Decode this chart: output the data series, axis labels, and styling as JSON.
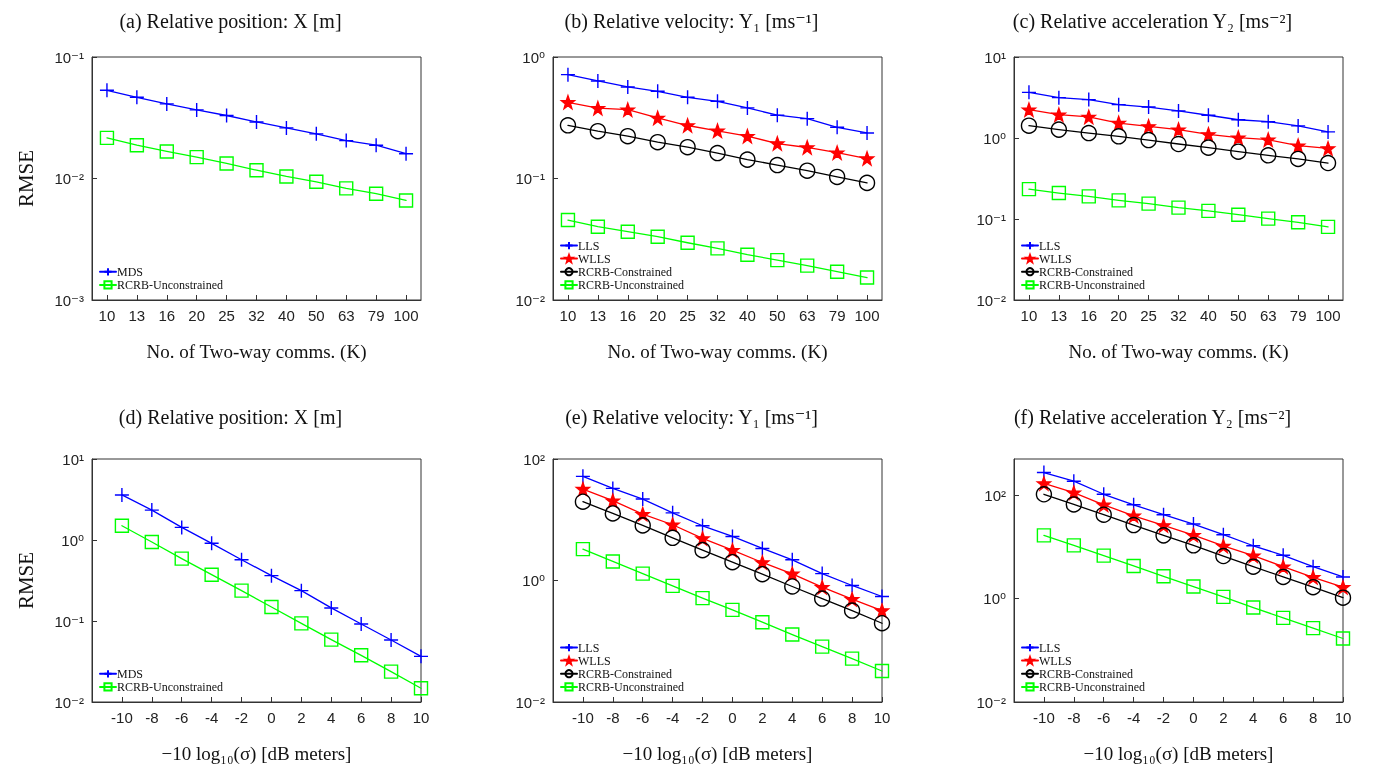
{
  "chart_data": [
    {
      "type": "line",
      "title": "(a) Relative position: X [m]",
      "xlabel": "No. of Two-way comms. (K)",
      "ylabel": "RMSE",
      "categories": [
        "10",
        "13",
        "16",
        "20",
        "25",
        "32",
        "40",
        "50",
        "63",
        "79",
        "100"
      ],
      "log": "y",
      "ylim": [
        0.001,
        0.1
      ],
      "yticks": [
        {
          "value": 0.001,
          "label": "10⁻³"
        },
        {
          "value": 0.01,
          "label": "10⁻²"
        },
        {
          "value": 0.1,
          "label": "10⁻¹"
        }
      ],
      "legend": "bottom left",
      "series": [
        {
          "name": "MDS",
          "color": "#0000ff",
          "marker": "cross",
          "values": [
            0.0532,
            0.0466,
            0.0411,
            0.0367,
            0.033,
            0.0292,
            0.0261,
            0.0233,
            0.0205,
            0.0188,
            0.016
          ]
        },
        {
          "name": "RCRB-Unconstrained",
          "color": "#00ff00",
          "marker": "square",
          "values": [
            0.0216,
            0.0188,
            0.0167,
            0.015,
            0.0133,
            0.0117,
            0.0104,
            0.0094,
            0.0083,
            0.0075,
            0.0066
          ]
        }
      ]
    },
    {
      "type": "line",
      "title": "(b) Relative velocity: Y₁ [ms⁻¹]",
      "xlabel": "No. of Two-way comms. (K)",
      "categories": [
        "10",
        "13",
        "16",
        "20",
        "25",
        "32",
        "40",
        "50",
        "63",
        "79",
        "100"
      ],
      "log": "y",
      "ylim": [
        0.01,
        1
      ],
      "yticks": [
        {
          "value": 0.01,
          "label": "10⁻²"
        },
        {
          "value": 0.1,
          "label": "10⁻¹"
        },
        {
          "value": 1,
          "label": "10⁰"
        }
      ],
      "legend": "bottom left",
      "series": [
        {
          "name": "LLS",
          "color": "#0000ff",
          "marker": "cross",
          "values": [
            0.716,
            0.635,
            0.567,
            0.522,
            0.466,
            0.432,
            0.381,
            0.332,
            0.311,
            0.264,
            0.237
          ]
        },
        {
          "name": "WLLS",
          "color": "#ff0000",
          "marker": "star",
          "values": [
            0.424,
            0.379,
            0.369,
            0.315,
            0.273,
            0.247,
            0.223,
            0.194,
            0.18,
            0.163,
            0.146
          ]
        },
        {
          "name": "RCRB-Constrained",
          "color": "#000000",
          "marker": "circle",
          "values": [
            0.274,
            0.245,
            0.223,
            0.199,
            0.181,
            0.162,
            0.143,
            0.129,
            0.116,
            0.103,
            0.092
          ]
        },
        {
          "name": "RCRB-Unconstrained",
          "color": "#00ff00",
          "marker": "square",
          "values": [
            0.0455,
            0.0401,
            0.0365,
            0.0332,
            0.0296,
            0.0266,
            0.0236,
            0.0213,
            0.0192,
            0.0171,
            0.0153
          ]
        }
      ]
    },
    {
      "type": "line",
      "title": "(c) Relative acceleration Y₂ [ms⁻²]",
      "xlabel": "No. of Two-way comms. (K)",
      "categories": [
        "10",
        "13",
        "16",
        "20",
        "25",
        "32",
        "40",
        "50",
        "63",
        "79",
        "100"
      ],
      "log": "y",
      "ylim": [
        0.01,
        10
      ],
      "yticks": [
        {
          "value": 0.01,
          "label": "10⁻²"
        },
        {
          "value": 0.1,
          "label": "10⁻¹"
        },
        {
          "value": 1,
          "label": "10⁰"
        },
        {
          "value": 10,
          "label": "10¹"
        }
      ],
      "legend": "bottom left",
      "series": [
        {
          "name": "LLS",
          "color": "#0000ff",
          "marker": "cross",
          "values": [
            3.66,
            3.15,
            2.98,
            2.58,
            2.41,
            2.16,
            1.91,
            1.68,
            1.59,
            1.41,
            1.19
          ]
        },
        {
          "name": "WLLS",
          "color": "#ff0000",
          "marker": "star",
          "values": [
            2.24,
            1.94,
            1.82,
            1.53,
            1.39,
            1.27,
            1.11,
            1.01,
            0.953,
            0.804,
            0.745
          ]
        },
        {
          "name": "RCRB-Constrained",
          "color": "#000000",
          "marker": "circle",
          "values": [
            1.42,
            1.27,
            1.15,
            1.05,
            0.944,
            0.843,
            0.76,
            0.678,
            0.611,
            0.551,
            0.491
          ]
        },
        {
          "name": "RCRB-Unconstrained",
          "color": "#00ff00",
          "marker": "square",
          "values": [
            0.234,
            0.209,
            0.19,
            0.17,
            0.155,
            0.138,
            0.126,
            0.113,
            0.101,
            0.091,
            0.08
          ]
        }
      ]
    },
    {
      "type": "line",
      "title": "(d) Relative position: X [m]",
      "xlabel": "−10 log₁₀(σ) [dB meters]",
      "ylabel": "RMSE",
      "x": [
        -10,
        -8,
        -6,
        -4,
        -2,
        0,
        2,
        4,
        6,
        8,
        10
      ],
      "xlim": [
        -12,
        10
      ],
      "xticks": [
        -10,
        -8,
        -6,
        -4,
        -2,
        0,
        2,
        4,
        6,
        8,
        10
      ],
      "log": "y",
      "ylim": [
        0.01,
        10
      ],
      "yticks": [
        {
          "value": 0.01,
          "label": "10⁻²"
        },
        {
          "value": 0.1,
          "label": "10⁻¹"
        },
        {
          "value": 1,
          "label": "10⁰"
        },
        {
          "value": 10,
          "label": "10¹"
        }
      ],
      "legend": "bottom left",
      "series": [
        {
          "name": "MDS",
          "color": "#0000ff",
          "marker": "cross",
          "values": [
            3.6,
            2.34,
            1.43,
            0.91,
            0.571,
            0.363,
            0.237,
            0.145,
            0.0919,
            0.0582,
            0.0366
          ]
        },
        {
          "name": "RCRB-Unconstrained",
          "color": "#00ff00",
          "marker": "square",
          "values": [
            1.5,
            0.944,
            0.589,
            0.373,
            0.237,
            0.149,
            0.0936,
            0.0589,
            0.0377,
            0.0237,
            0.0148
          ]
        }
      ]
    },
    {
      "type": "line",
      "title": "(e) Relative velocity: Y₁ [ms⁻¹]",
      "xlabel": "−10 log₁₀(σ) [dB meters]",
      "x": [
        -10,
        -8,
        -6,
        -4,
        -2,
        0,
        2,
        4,
        6,
        8,
        10
      ],
      "xlim": [
        -12,
        10
      ],
      "xticks": [
        -10,
        -8,
        -6,
        -4,
        -2,
        0,
        2,
        4,
        6,
        8,
        10
      ],
      "log": "y",
      "ylim": [
        0.01,
        100
      ],
      "yticks": [
        {
          "value": 0.01,
          "label": "10⁻²"
        },
        {
          "value": 1,
          "label": "10⁰"
        },
        {
          "value": 100,
          "label": "10²"
        }
      ],
      "legend": "bottom left",
      "series": [
        {
          "name": "LLS",
          "color": "#0000ff",
          "marker": "cross",
          "values": [
            51.8,
            32.8,
            21.9,
            13,
            7.96,
            5.31,
            3.37,
            2.19,
            1.3,
            0.828,
            0.545
          ]
        },
        {
          "name": "WLLS",
          "color": "#ff0000",
          "marker": "star",
          "values": [
            32,
            20.6,
            12.4,
            8.27,
            4.92,
            3.16,
            1.98,
            1.29,
            0.777,
            0.493,
            0.32
          ]
        },
        {
          "name": "RCRB-Constrained",
          "color": "#000000",
          "marker": "circle",
          "values": [
            19.8,
            12.7,
            8.07,
            5.05,
            3.16,
            2,
            1.27,
            0.797,
            0.505,
            0.32,
            0.198
          ]
        },
        {
          "name": "RCRB-Unconstrained",
          "color": "#00ff00",
          "marker": "square",
          "values": [
            3.28,
            2.06,
            1.3,
            0.817,
            0.512,
            0.328,
            0.206,
            0.129,
            0.0817,
            0.0518,
            0.0324
          ]
        }
      ]
    },
    {
      "type": "line",
      "title": "(f) Relative acceleration Y₂ [ms⁻²]",
      "xlabel": "−10 log₁₀(σ) [dB meters]",
      "x": [
        -10,
        -8,
        -6,
        -4,
        -2,
        0,
        2,
        4,
        6,
        8,
        10
      ],
      "xlim": [
        -12,
        10
      ],
      "xticks": [
        -10,
        -8,
        -6,
        -4,
        -2,
        0,
        2,
        4,
        6,
        8,
        10
      ],
      "log": "y",
      "ylim": [
        0.01,
        500
      ],
      "yticks": [
        {
          "value": 0.01,
          "label": "10⁻²"
        },
        {
          "value": 1,
          "label": "10⁰"
        },
        {
          "value": 100,
          "label": "10²"
        }
      ],
      "legend": "bottom left",
      "series": [
        {
          "name": "LLS",
          "color": "#0000ff",
          "marker": "cross",
          "values": [
            274,
            186,
            104,
            65.1,
            41.8,
            27.6,
            17.2,
            10.5,
            6.86,
            4.14,
            2.62
          ]
        },
        {
          "name": "WLLS",
          "color": "#ff0000",
          "marker": "star",
          "values": [
            168,
            112,
            65.1,
            39.9,
            26,
            16.9,
            10.4,
            6.76,
            4.14,
            2.58,
            1.66
          ]
        },
        {
          "name": "RCRB-Constrained",
          "color": "#000000",
          "marker": "circle",
          "values": [
            104,
            66.1,
            41.8,
            26.4,
            16.7,
            10.7,
            6.65,
            4.14,
            2.62,
            1.66,
            1.04
          ]
        },
        {
          "name": "RCRB-Unconstrained",
          "color": "#00ff00",
          "marker": "square",
          "values": [
            16.7,
            10.7,
            6.76,
            4.27,
            2.7,
            1.71,
            1.08,
            0.67,
            0.424,
            0.268,
            0.169
          ]
        }
      ]
    }
  ]
}
